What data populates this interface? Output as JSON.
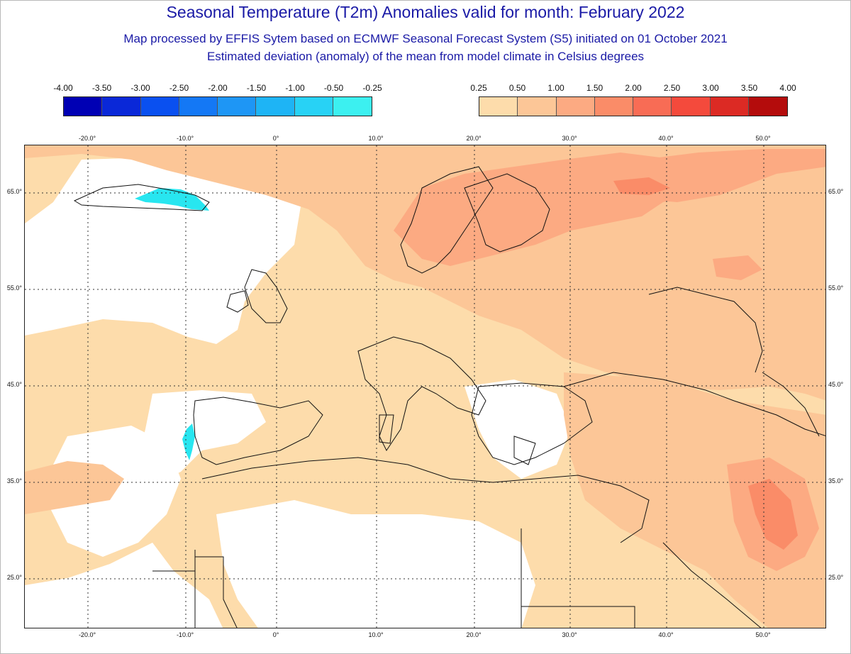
{
  "header": {
    "title": "Seasonal Temperature (T2m) Anomalies valid for month: February 2022",
    "subtitle1": "Map processed by EFFIS Sytem based on ECMWF Seasonal Forecast System (S5) initiated on 01 October 2021",
    "subtitle2": "Estimated deviation (anomaly) of the mean from model climate in Celsius degrees"
  },
  "legend_cold": {
    "labels": [
      "-4.00",
      "-3.50",
      "-3.00",
      "-2.50",
      "-2.00",
      "-1.50",
      "-1.00",
      "-0.50",
      "-0.25"
    ],
    "colors": [
      "#0000b4",
      "#0a28d8",
      "#0a50f0",
      "#1478f5",
      "#1e96f5",
      "#1eb4f5",
      "#28d2f5",
      "#3cf0f0"
    ]
  },
  "legend_warm": {
    "labels": [
      "0.25",
      "0.50",
      "1.00",
      "1.50",
      "2.00",
      "2.50",
      "3.00",
      "3.50",
      "4.00"
    ],
    "colors": [
      "#fddcab",
      "#fcc697",
      "#fcaa82",
      "#fa8c68",
      "#f86c55",
      "#f44a3c",
      "#dc2a24",
      "#b40c0c"
    ]
  },
  "map": {
    "lon_labels": [
      "-20.0°",
      "-10.0°",
      "0°",
      "10.0°",
      "20.0°",
      "30.0°",
      "40.0°",
      "50.0°"
    ],
    "lat_labels": [
      "65.0°",
      "55.0°",
      "45.0°",
      "35.0°",
      "25.0°"
    ]
  },
  "colors": {
    "anomaly_025": "#fddcab",
    "anomaly_050": "#fcc697",
    "anomaly_100": "#fcaa82",
    "anomaly_150": "#fa8c68",
    "cold_anomaly": "#28e6f0",
    "title_text": "#1a1aa6",
    "coastline": "#111111"
  }
}
